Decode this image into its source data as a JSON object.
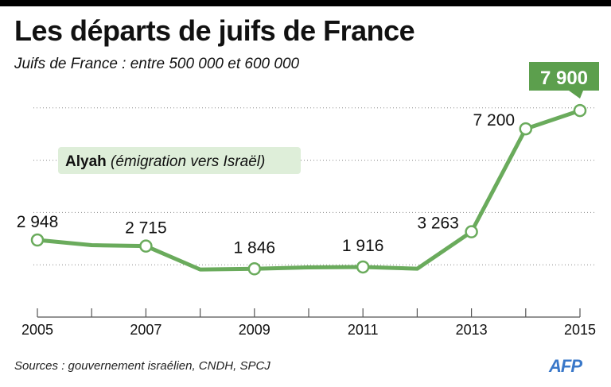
{
  "title": "Les départs de juifs de France",
  "subtitle": "Juifs de France : entre 500 000 et 600 000",
  "source": "Sources :  gouvernement israélien, CNDH, SPCJ",
  "logo": "AFP",
  "colors": {
    "line": "#6aab5c",
    "highlight": "#5c9f4d",
    "legend_bg": "#deeed9",
    "logo": "#3a78c9"
  },
  "chart_data": {
    "type": "line",
    "title": "Les départs de juifs de France",
    "legend": {
      "bold": "Alyah",
      "italic": "(émigration vers Israël)",
      "placement": "top-left"
    },
    "x": [
      2005,
      2006,
      2007,
      2008,
      2009,
      2010,
      2011,
      2012,
      2013,
      2014,
      2015
    ],
    "y": [
      2948,
      2750,
      2715,
      1820,
      1846,
      1900,
      1916,
      1850,
      3263,
      7200,
      7900
    ],
    "markers": [
      2005,
      2007,
      2009,
      2011,
      2013,
      2014,
      2015
    ],
    "data_labels": [
      {
        "year": 2005,
        "text": "2 948"
      },
      {
        "year": 2007,
        "text": "2 715"
      },
      {
        "year": 2009,
        "text": "1 846"
      },
      {
        "year": 2011,
        "text": "1 916"
      },
      {
        "year": 2013,
        "text": "3 263"
      },
      {
        "year": 2014,
        "text": "7 200"
      },
      {
        "year": 2015,
        "text": "7 900",
        "highlight": true
      }
    ],
    "xticks": [
      "2005",
      "2007",
      "2009",
      "2011",
      "2013",
      "2015"
    ],
    "ylim": [
      0,
      8000
    ],
    "gridlines": [
      2000,
      4000,
      6000,
      8000
    ],
    "grid": "dotted horizontal",
    "xlabel": "",
    "ylabel": ""
  }
}
